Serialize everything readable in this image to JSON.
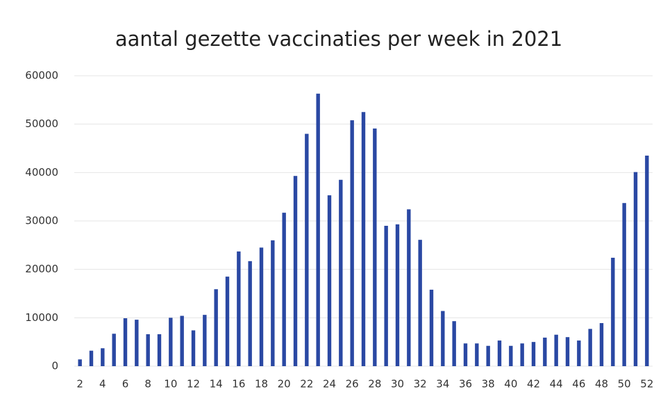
{
  "chart_data": {
    "type": "bar",
    "title": "aantal gezette vaccinaties per week in 2021",
    "categories": [
      "2",
      null,
      "4",
      null,
      "6",
      null,
      "8",
      null,
      "10",
      null,
      "12",
      null,
      "14",
      null,
      "16",
      null,
      "18",
      null,
      "20",
      null,
      "22",
      null,
      "24",
      null,
      "26",
      null,
      "28",
      null,
      "30",
      null,
      "32",
      null,
      "34",
      null,
      "36",
      null,
      "38",
      null,
      "40",
      null,
      "42",
      null,
      "44",
      null,
      "46",
      null,
      "48",
      null,
      "50",
      null,
      "52"
    ],
    "values": [
      1400,
      3200,
      3700,
      6700,
      9900,
      9600,
      6600,
      6600,
      10000,
      10400,
      7400,
      10600,
      15900,
      18500,
      23700,
      21700,
      24500,
      26000,
      31700,
      39300,
      48000,
      56300,
      35300,
      38500,
      50800,
      52500,
      49100,
      29000,
      29300,
      32400,
      26100,
      15800,
      11400,
      9300,
      4700,
      4700,
      4200,
      5300,
      4200,
      4700,
      5000,
      5900,
      6500,
      6000,
      5300,
      7700,
      8900,
      22400,
      33700,
      40100,
      43500
    ],
    "color": "#2a48a3",
    "ylim": [
      0,
      60000
    ],
    "yticks": [
      0,
      10000,
      20000,
      30000,
      40000,
      50000,
      60000
    ],
    "grid": true
  }
}
